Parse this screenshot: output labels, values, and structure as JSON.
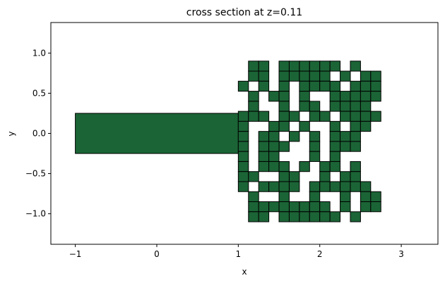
{
  "chart_data": {
    "type": "other",
    "title": "cross section at z=0.11",
    "xlabel": "x",
    "ylabel": "y",
    "xlim": [
      -1.3,
      3.45
    ],
    "ylim": [
      -1.38,
      1.38
    ],
    "x_ticks": [
      -1,
      0,
      1,
      2,
      3
    ],
    "x_tick_labels": [
      "−1",
      "0",
      "1",
      "2",
      "3"
    ],
    "y_ticks": [
      -1.0,
      -0.5,
      0.0,
      0.5,
      1.0
    ],
    "y_tick_labels": [
      "−1.0",
      "−0.5",
      "0.0",
      "0.5",
      "1.0"
    ],
    "fill_color": "#1b6436",
    "edge_color": "#000000",
    "waveguide": {
      "x0": -1.0,
      "x1": 1.0,
      "y0": -0.25,
      "y1": 0.25
    },
    "pixel_grid": {
      "x0": 1.0,
      "y0": -1.1,
      "size": 0.125,
      "rows": [
        ".11.111111.1..",
        ".11.11111.1.11",
        "1.1.1.1111.111",
        ".1.11.1..11111",
        ".1..1.11.1111.",
        "111.11.11.1111",
        "1..11.1..1.11.",
        "1.11.1.1.111..",
        "1.111..1.111..",
        "1.11...1.1....",
        "1.111.1.11.1..",
        "11..11..1.11..",
        "1.1111.111111.",
        ".1..1..1..1.11",
        ".11111111.1.11",
        ".11.111111.1.."
      ]
    }
  }
}
